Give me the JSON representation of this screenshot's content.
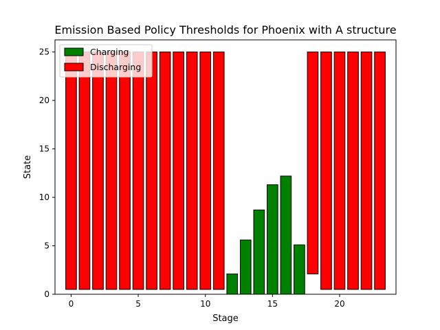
{
  "chart_data": {
    "type": "bar",
    "title": "Emission Based Policy Thresholds for Phoenix with A structure",
    "xlabel": "Stage",
    "ylabel": "State",
    "xlim": [
      -1.2,
      24.2
    ],
    "ylim": [
      0,
      26.25
    ],
    "xticks": [
      0,
      5,
      10,
      15,
      20
    ],
    "yticks": [
      0,
      5,
      10,
      15,
      20,
      25
    ],
    "grid": false,
    "legend_position": "top-left",
    "stages": [
      0,
      1,
      2,
      3,
      4,
      5,
      6,
      7,
      8,
      9,
      10,
      11,
      12,
      13,
      14,
      15,
      16,
      17,
      18,
      19,
      20,
      21,
      22,
      23
    ],
    "series": [
      {
        "name": "Charging",
        "color": "#008000",
        "values": [
          0,
          0,
          0,
          0,
          0,
          0,
          0,
          0,
          0,
          0,
          0,
          0,
          2.1,
          5.6,
          8.7,
          11.3,
          12.2,
          5.1,
          0,
          0,
          0,
          0,
          0,
          0
        ]
      },
      {
        "name": "Discharging",
        "color": "#ff0000",
        "bottoms": [
          0.5,
          0.5,
          0.5,
          0.5,
          0.5,
          0.5,
          0.5,
          0.5,
          0.5,
          0.5,
          0.5,
          0.5,
          null,
          null,
          null,
          null,
          null,
          null,
          2.1,
          0.5,
          0.5,
          0.5,
          0.5,
          0.5
        ],
        "tops": [
          25,
          25,
          25,
          25,
          25,
          25,
          25,
          25,
          25,
          25,
          25,
          25,
          null,
          null,
          null,
          null,
          null,
          null,
          25,
          25,
          25,
          25,
          25,
          25
        ]
      }
    ]
  }
}
